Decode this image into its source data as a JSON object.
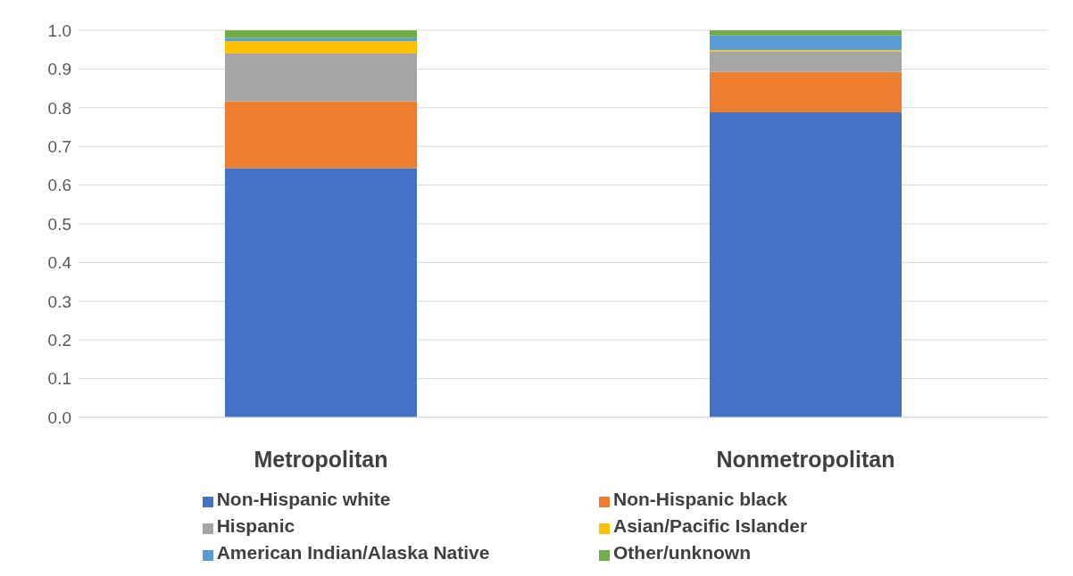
{
  "chart_data": {
    "type": "bar",
    "stacked": true,
    "categories": [
      "Metropolitan",
      "Nonmetropolitan"
    ],
    "series": [
      {
        "name": "Non-Hispanic white",
        "color": "#4472c4",
        "values": [
          0.644,
          0.788
        ]
      },
      {
        "name": "Non-Hispanic black",
        "color": "#ed7d31",
        "values": [
          0.173,
          0.105
        ]
      },
      {
        "name": "Hispanic",
        "color": "#a5a5a5",
        "values": [
          0.123,
          0.052
        ]
      },
      {
        "name": "Asian/Pacific Islander",
        "color": "#ffc000",
        "values": [
          0.032,
          0.004
        ]
      },
      {
        "name": "American Indian/Alaska Native",
        "color": "#5b9bd5",
        "values": [
          0.008,
          0.038
        ]
      },
      {
        "name": "Other/unknown",
        "color": "#70ad47",
        "values": [
          0.02,
          0.013
        ]
      }
    ],
    "ylim": [
      0,
      1
    ],
    "yticks": [
      {
        "value": 0,
        "label": "0.0"
      },
      {
        "value": 0.1,
        "label": "0.1"
      },
      {
        "value": 0.2,
        "label": "0.2"
      },
      {
        "value": 0.3,
        "label": "0.3"
      },
      {
        "value": 0.4,
        "label": "0.4"
      },
      {
        "value": 0.5,
        "label": "0.5"
      },
      {
        "value": 0.6,
        "label": "0.6"
      },
      {
        "value": 0.7,
        "label": "0.7"
      },
      {
        "value": 0.8,
        "label": "0.8"
      },
      {
        "value": 0.9,
        "label": "0.9"
      },
      {
        "value": 1,
        "label": "1.0"
      }
    ],
    "grid": "y",
    "legend": "bottom"
  }
}
